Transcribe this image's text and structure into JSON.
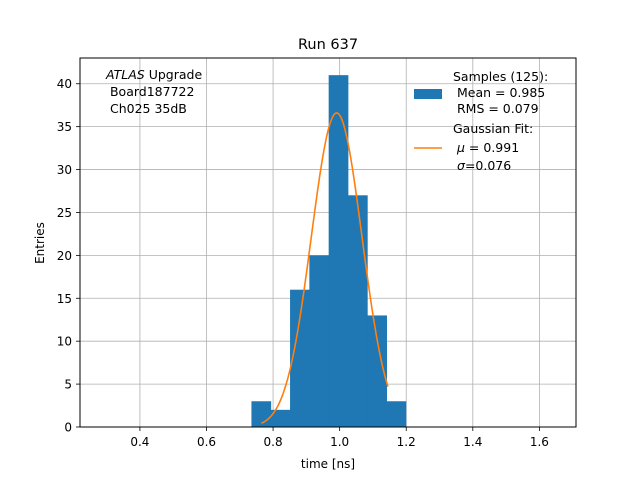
{
  "chart_data": {
    "type": "bar",
    "title": "Run 637",
    "xlabel": "time [ns]",
    "ylabel": "Entries",
    "xlim": [
      0.22,
      1.71
    ],
    "ylim": [
      0,
      43
    ],
    "xticks": [
      0.4,
      0.6,
      0.8,
      1.0,
      1.2,
      1.4,
      1.6
    ],
    "xtick_labels": [
      "0.4",
      "0.6",
      "0.8",
      "1.0",
      "1.2",
      "1.4",
      "1.6"
    ],
    "yticks": [
      0,
      5,
      10,
      15,
      20,
      25,
      30,
      35,
      40
    ],
    "ytick_labels": [
      "0",
      "5",
      "10",
      "15",
      "20",
      "25",
      "30",
      "35",
      "40"
    ],
    "grid": true,
    "annotation": {
      "line1_italic": "ATLAS",
      "line1_rest": " Upgrade",
      "line2": " Board187722",
      "line3": " Ch025 35dB"
    },
    "histogram": {
      "name": "Samples (125):",
      "color": "#1f77b4",
      "bins": [
        {
          "x0": 0.735,
          "x1": 0.793,
          "count": 3
        },
        {
          "x0": 0.793,
          "x1": 0.851,
          "count": 2
        },
        {
          "x0": 0.851,
          "x1": 0.909,
          "count": 16
        },
        {
          "x0": 0.909,
          "x1": 0.967,
          "count": 20
        },
        {
          "x0": 0.967,
          "x1": 1.025,
          "count": 41
        },
        {
          "x0": 1.025,
          "x1": 1.083,
          "count": 27
        },
        {
          "x0": 1.083,
          "x1": 1.141,
          "count": 13
        },
        {
          "x0": 1.141,
          "x1": 1.199,
          "count": 3
        }
      ]
    },
    "fit": {
      "name": "Gaussian Fit:",
      "color": "#ff7f0e",
      "mu": 0.991,
      "sigma": 0.076,
      "amplitude": 36.6,
      "x_range": [
        0.765,
        1.145
      ]
    },
    "legend": {
      "placement": "top-right",
      "hist_title": "Samples (125):",
      "hist_mean": " Mean = 0.985",
      "hist_rms": " RMS = 0.079",
      "fit_title": "Gaussian Fit:",
      "fit_mu_symbol": "μ",
      "fit_mu_value": " = 0.991",
      "fit_sigma_symbol": "σ",
      "fit_sigma_value": "=0.076"
    }
  }
}
